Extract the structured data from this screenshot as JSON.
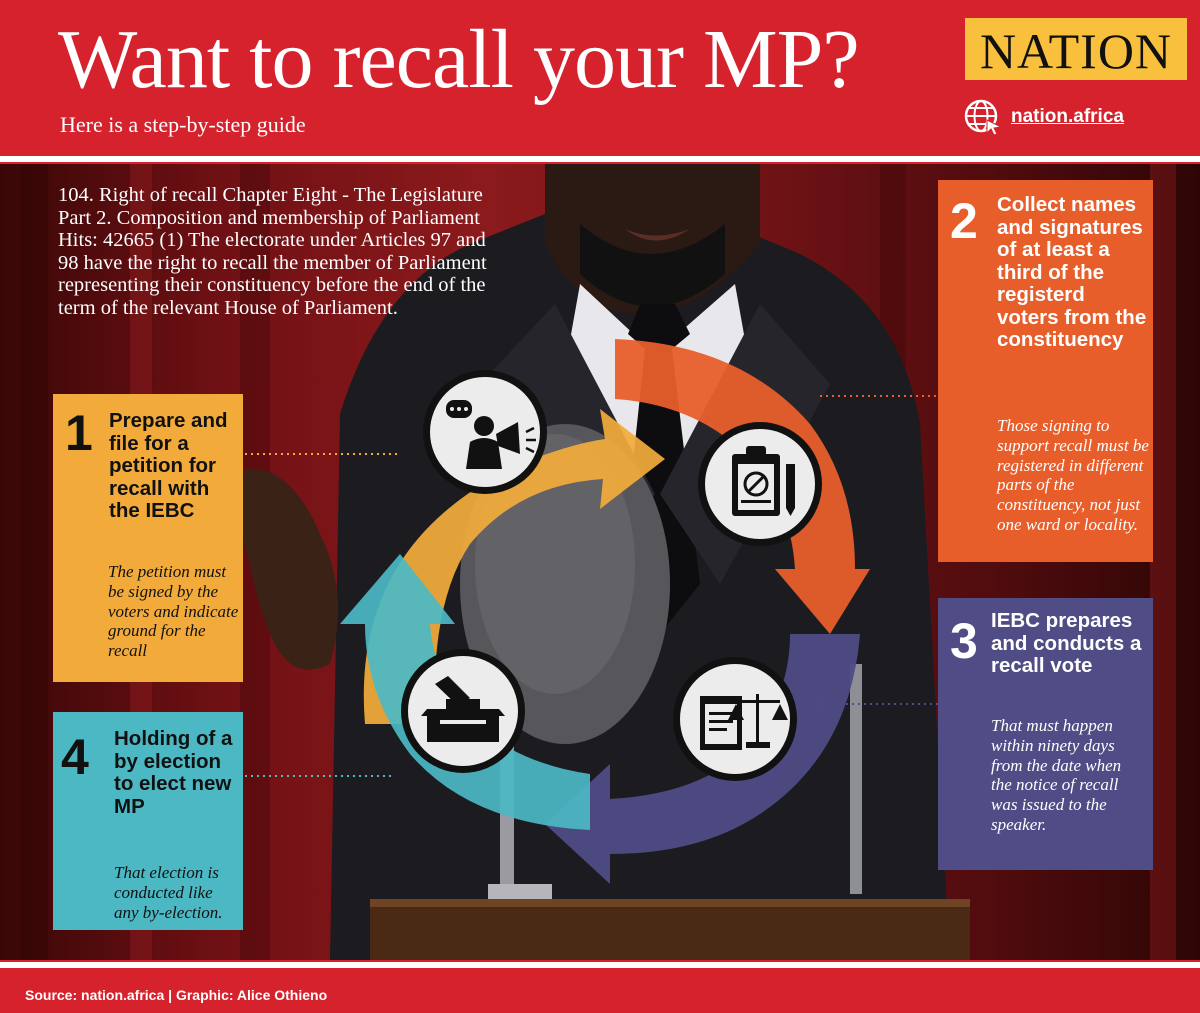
{
  "header": {
    "title": "Want to recall your MP?",
    "subtitle": "Here is a step-by-step guide",
    "logo": "NATION",
    "website": "nation.africa"
  },
  "intro": "104. Right of recall Chapter Eight - The Legislature Part 2. Composition and membership of Parliament Hits: 42665 (1) The electorate under Articles 97 and 98 have the right to recall the member of Parliament representing their constituency before the end of the term of the relevant House of Parliament.",
  "steps": [
    {
      "number": "1",
      "heading": "Prepare and file for a petition for recall with the IEBC",
      "note": "The petition must be signed by the voters and indicate ground for the recall",
      "color": "#f2ab3b",
      "icon": "speaker-megaphone-icon"
    },
    {
      "number": "2",
      "heading": "Collect names and signatures of at least a third of the registerd voters from the constituency",
      "note": "Those signing to support recall must be registered in different parts of the constituency, not just one ward or locality.",
      "color": "#e85e2b",
      "icon": "clipboard-petition-icon"
    },
    {
      "number": "3",
      "heading": "IEBC prepares and conducts a recall vote",
      "note": "That must happen within ninety days from the date when the notice of recall was issued to the speaker.",
      "color": "#4f4c86",
      "icon": "law-scale-scroll-icon"
    },
    {
      "number": "4",
      "heading": "Holding of a by election to elect new MP",
      "note": "That election is conducted like any by-election.",
      "color": "#4bb8c4",
      "icon": "ballot-box-icon"
    }
  ],
  "footer": {
    "credits": "Source: nation.africa   | Graphic: Alice Othieno"
  }
}
